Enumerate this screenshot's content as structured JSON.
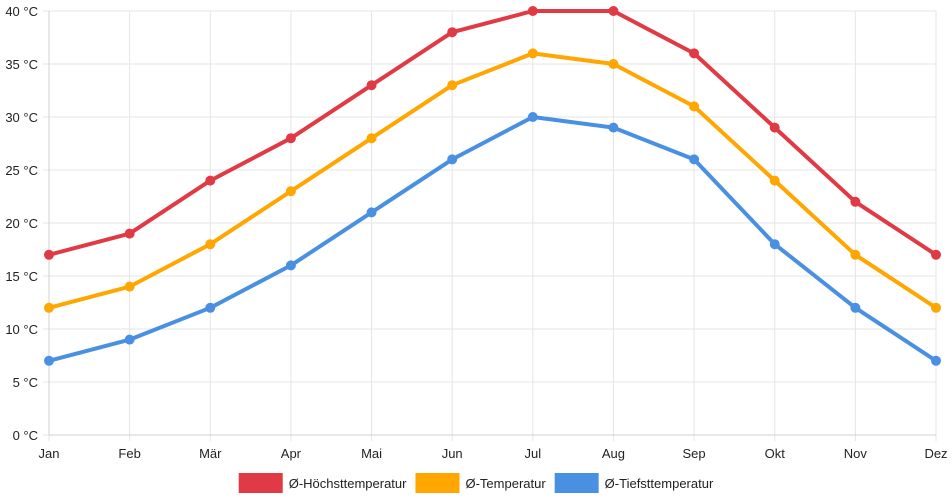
{
  "chart_data": {
    "type": "line",
    "categories": [
      "Jan",
      "Feb",
      "Mär",
      "Apr",
      "Mai",
      "Jun",
      "Jul",
      "Aug",
      "Sep",
      "Okt",
      "Nov",
      "Dez"
    ],
    "series": [
      {
        "name": "Ø-Höchsttemperatur",
        "color": "#e03a45",
        "values": [
          17,
          19,
          24,
          28,
          33,
          38,
          40,
          40,
          36,
          29,
          22,
          17
        ]
      },
      {
        "name": "Ø-Temperatur",
        "color": "#ffa600",
        "values": [
          12,
          14,
          18,
          23,
          28,
          33,
          36,
          35,
          31,
          24,
          17,
          12
        ]
      },
      {
        "name": "Ø-Tiefsttemperatur",
        "color": "#4a90e2",
        "values": [
          7,
          9,
          12,
          16,
          21,
          26,
          30,
          29,
          26,
          18,
          12,
          7
        ]
      }
    ],
    "y_ticks": [
      0,
      5,
      10,
      15,
      20,
      25,
      30,
      35,
      40
    ],
    "y_unit": "°C",
    "ylim": [
      0,
      40
    ],
    "grid": true,
    "legend": "bottom-center"
  }
}
